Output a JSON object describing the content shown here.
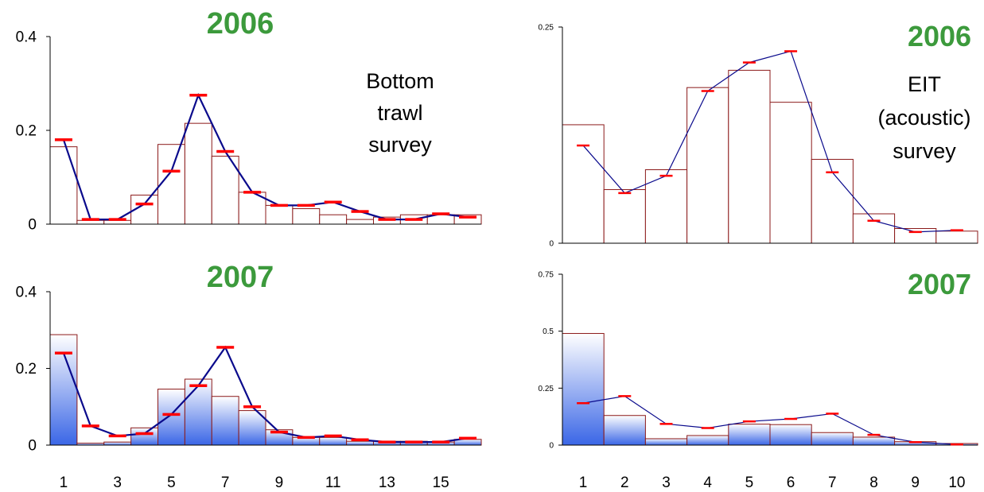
{
  "chart_data": [
    {
      "id": "bt2006",
      "type": "bar",
      "year_label": "2006",
      "side_label": [
        "Bottom",
        "trawl",
        "survey"
      ],
      "categories": [
        "1",
        "2",
        "3",
        "4",
        "5",
        "6",
        "7",
        "8",
        "9",
        "10",
        "11",
        "12",
        "13",
        "14",
        "15",
        "16"
      ],
      "x_tick_labels": [],
      "y_ticks": [
        "0.4",
        "0.2",
        "0"
      ],
      "ylim": [
        0,
        0.4
      ],
      "series": [
        {
          "name": "",
          "kind": "bar",
          "values": [
            0.165,
            0.008,
            0.008,
            0.062,
            0.17,
            0.215,
            0.145,
            0.068,
            0.04,
            0.033,
            0.02,
            0.01,
            0.015,
            0.02,
            0.02,
            0.02
          ]
        },
        {
          "name": "",
          "kind": "line-with-markers",
          "values": [
            0.18,
            0.01,
            0.01,
            0.043,
            0.113,
            0.275,
            0.155,
            0.068,
            0.04,
            0.04,
            0.047,
            0.027,
            0.01,
            0.01,
            0.022,
            0.015
          ]
        }
      ],
      "gradient_fill": false,
      "colors": {
        "bar_edge": "#8b1a1a",
        "line": "#0a0a8c",
        "marker": "#ff0000",
        "year": "#3c9a3c"
      }
    },
    {
      "id": "eit2006",
      "type": "bar",
      "year_label": "2006",
      "side_label": [
        "EIT",
        "(acoustic)",
        "survey"
      ],
      "categories": [
        "1",
        "2",
        "3",
        "4",
        "5",
        "6",
        "7",
        "8",
        "9",
        "10"
      ],
      "x_tick_labels": [],
      "y_ticks": [
        "0.25",
        "0"
      ],
      "ylim": [
        0,
        0.25
      ],
      "series": [
        {
          "name": "",
          "kind": "bar",
          "values": [
            0.137,
            0.062,
            0.085,
            0.18,
            0.2,
            0.163,
            0.097,
            0.034,
            0.017,
            0.014
          ]
        },
        {
          "name": "",
          "kind": "line-with-markers",
          "values": [
            0.113,
            0.058,
            0.078,
            0.176,
            0.209,
            0.222,
            0.082,
            0.026,
            0.013,
            0.015
          ]
        }
      ],
      "gradient_fill": false,
      "colors": {
        "bar_edge": "#8b1a1a",
        "line": "#0a0a8c",
        "marker": "#ff0000",
        "year": "#3c9a3c"
      }
    },
    {
      "id": "bt2007",
      "type": "bar",
      "year_label": "2007",
      "side_label": [],
      "categories": [
        "1",
        "2",
        "3",
        "4",
        "5",
        "6",
        "7",
        "8",
        "9",
        "10",
        "11",
        "12",
        "13",
        "14",
        "15",
        "16"
      ],
      "x_tick_labels": [
        "1",
        "3",
        "5",
        "7",
        "9",
        "11",
        "13",
        "15"
      ],
      "y_ticks": [
        "0.4",
        "0.2",
        "0"
      ],
      "ylim": [
        0,
        0.4
      ],
      "series": [
        {
          "name": "",
          "kind": "bar",
          "values": [
            0.288,
            0.005,
            0.008,
            0.045,
            0.146,
            0.172,
            0.127,
            0.09,
            0.04,
            0.02,
            0.02,
            0.01,
            0.01,
            0.01,
            0.008,
            0.015
          ]
        },
        {
          "name": "",
          "kind": "line-with-markers",
          "values": [
            0.24,
            0.05,
            0.024,
            0.03,
            0.08,
            0.155,
            0.255,
            0.1,
            0.034,
            0.02,
            0.024,
            0.014,
            0.008,
            0.008,
            0.008,
            0.018
          ]
        }
      ],
      "gradient_fill": true,
      "colors": {
        "bar_edge": "#8b1a1a",
        "line": "#0a0a8c",
        "marker": "#ff0000",
        "year": "#3c9a3c",
        "fill_top": "#ffffff",
        "fill_bottom": "#3a66e6"
      }
    },
    {
      "id": "eit2007",
      "type": "bar",
      "year_label": "2007",
      "side_label": [],
      "categories": [
        "1",
        "2",
        "3",
        "4",
        "5",
        "6",
        "7",
        "8",
        "9",
        "10"
      ],
      "x_tick_labels": [
        "1",
        "2",
        "3",
        "4",
        "5",
        "6",
        "7",
        "8",
        "9",
        "10"
      ],
      "y_ticks": [
        "0.75",
        "0.5",
        "0.25",
        "0"
      ],
      "ylim": [
        0,
        0.75
      ],
      "series": [
        {
          "name": "",
          "kind": "bar",
          "values": [
            0.49,
            0.13,
            0.028,
            0.042,
            0.092,
            0.09,
            0.055,
            0.035,
            0.015,
            0.007
          ]
        },
        {
          "name": "",
          "kind": "line-with-markers",
          "values": [
            0.184,
            0.215,
            0.093,
            0.075,
            0.104,
            0.115,
            0.138,
            0.045,
            0.013,
            0.003
          ]
        }
      ],
      "gradient_fill": true,
      "colors": {
        "bar_edge": "#8b1a1a",
        "line": "#0a0a8c",
        "marker": "#ff0000",
        "year": "#3c9a3c",
        "fill_top": "#ffffff",
        "fill_bottom": "#3a66e6"
      }
    }
  ]
}
